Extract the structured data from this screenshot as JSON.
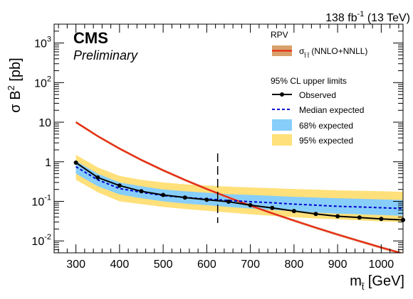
{
  "header": {
    "experiment": "CMS",
    "status": "Preliminary",
    "lumi_main": "138 fb",
    "lumi_sup": "-1",
    "lumi_energy": " (13 TeV)"
  },
  "legend": {
    "header": "RPV",
    "xsec_sym": "σ",
    "xsec_sub": "t̃ t̃",
    "xsec_rest": " (NNLO+NNLL)",
    "limits_header": "95% CL upper limits",
    "observed": "Observed",
    "median": "Median expected",
    "band68": "68% expected",
    "band95": "95% expected"
  },
  "colors": {
    "xsec_line": "#e8200e",
    "xsec_band": "#d8a06a",
    "observed": "#000000",
    "median": "#0000cc",
    "band68": "#87cefa",
    "band95": "#ffe07a",
    "marker_line": "#000000"
  },
  "chart_data": {
    "type": "line",
    "xlabel_main": "m",
    "xlabel_sub": "t̃",
    "xlabel_unit": " [GeV]",
    "ylabel_main": "σ B",
    "ylabel_sup": "2",
    "ylabel_unit": " [pb]",
    "xlim": [
      250,
      1050
    ],
    "ylim": [
      0.005,
      3000
    ],
    "log_y": true,
    "grid": false,
    "legend_position": "top-right",
    "x_ticks": [
      300,
      400,
      500,
      600,
      700,
      800,
      900,
      1000
    ],
    "y_ticks": [
      {
        "value": 0.01,
        "base": "10",
        "exp": "-2"
      },
      {
        "value": 0.1,
        "base": "10",
        "exp": "-1"
      },
      {
        "value": 1,
        "base": "1",
        "exp": ""
      },
      {
        "value": 10,
        "base": "10",
        "exp": ""
      },
      {
        "value": 100,
        "base": "10",
        "exp": "2"
      },
      {
        "value": 1000,
        "base": "10",
        "exp": "3"
      }
    ],
    "mass_marker": 625,
    "observed": {
      "x": [
        300,
        350,
        400,
        450,
        500,
        550,
        600,
        650,
        700,
        750,
        800,
        850,
        900,
        950,
        1000,
        1050
      ],
      "y": [
        0.95,
        0.4,
        0.25,
        0.18,
        0.145,
        0.125,
        0.11,
        0.098,
        0.08,
        0.068,
        0.057,
        0.048,
        0.042,
        0.039,
        0.036,
        0.034
      ]
    },
    "median_expected": {
      "x": [
        300,
        350,
        400,
        450,
        500,
        550,
        600,
        650,
        700,
        750,
        800,
        850,
        900,
        950,
        1000,
        1050
      ],
      "y": [
        0.75,
        0.35,
        0.21,
        0.17,
        0.14,
        0.125,
        0.115,
        0.105,
        0.098,
        0.092,
        0.085,
        0.08,
        0.075,
        0.072,
        0.069,
        0.066
      ]
    },
    "band68": {
      "x": [
        300,
        350,
        400,
        450,
        500,
        550,
        600,
        650,
        700,
        750,
        800,
        850,
        900,
        950,
        1000,
        1050
      ],
      "low": [
        0.5,
        0.24,
        0.15,
        0.12,
        0.1,
        0.088,
        0.08,
        0.072,
        0.066,
        0.061,
        0.056,
        0.052,
        0.049,
        0.047,
        0.045,
        0.043
      ],
      "high": [
        1.05,
        0.5,
        0.3,
        0.24,
        0.2,
        0.18,
        0.165,
        0.152,
        0.145,
        0.138,
        0.13,
        0.125,
        0.12,
        0.116,
        0.112,
        0.108
      ]
    },
    "band95": {
      "x": [
        300,
        350,
        400,
        450,
        500,
        550,
        600,
        650,
        700,
        750,
        800,
        850,
        900,
        950,
        1000,
        1050
      ],
      "low": [
        0.35,
        0.17,
        0.1,
        0.085,
        0.072,
        0.064,
        0.058,
        0.052,
        0.047,
        0.043,
        0.04,
        0.037,
        0.035,
        0.033,
        0.031,
        0.03
      ],
      "high": [
        1.5,
        0.72,
        0.44,
        0.35,
        0.3,
        0.27,
        0.25,
        0.235,
        0.225,
        0.215,
        0.205,
        0.198,
        0.19,
        0.185,
        0.18,
        0.175
      ]
    },
    "xsec": {
      "x": [
        300,
        350,
        400,
        450,
        500,
        550,
        600,
        650,
        700,
        750,
        800,
        850,
        900,
        950,
        1000,
        1050
      ],
      "y": [
        10.0,
        4.43,
        2.15,
        1.11,
        0.609,
        0.347,
        0.205,
        0.125,
        0.0783,
        0.05,
        0.0326,
        0.0216,
        0.0145,
        0.00991,
        0.00683,
        0.00476
      ],
      "rel_unc": 0.08
    }
  }
}
